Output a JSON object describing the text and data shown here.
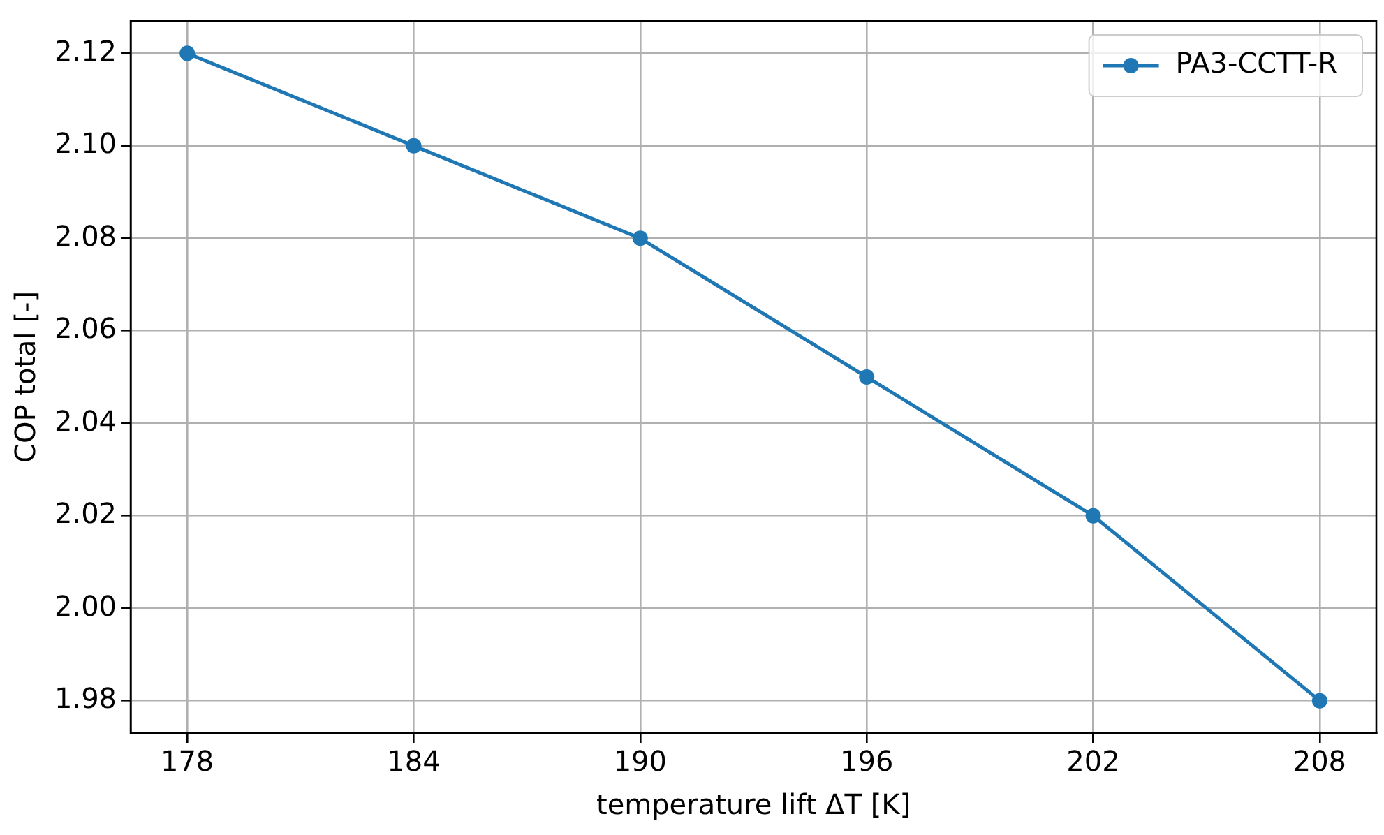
{
  "chart_data": {
    "type": "line",
    "xlabel": "temperature lift ΔT [K]",
    "ylabel": "COP total [-]",
    "x": [
      178,
      184,
      190,
      196,
      202,
      208
    ],
    "series": [
      {
        "name": "PA3-CCTT-R",
        "color": "#1f77b4",
        "values": [
          2.12,
          2.1,
          2.08,
          2.05,
          2.02,
          1.98
        ]
      }
    ],
    "xlim": [
      176.5,
      209.5
    ],
    "xticks": [
      178,
      184,
      190,
      196,
      202,
      208
    ],
    "ylim": [
      1.973,
      2.127
    ],
    "yticks": [
      {
        "value": 1.98,
        "label": "1.98"
      },
      {
        "value": 2.0,
        "label": "2.00"
      },
      {
        "value": 2.02,
        "label": "2.02"
      },
      {
        "value": 2.04,
        "label": "2.04"
      },
      {
        "value": 2.06,
        "label": "2.06"
      },
      {
        "value": 2.08,
        "label": "2.08"
      },
      {
        "value": 2.1,
        "label": "2.10"
      },
      {
        "value": 2.12,
        "label": "2.12"
      }
    ],
    "grid": true,
    "legend": "top right",
    "marker": "circle",
    "line_style": "solid"
  }
}
